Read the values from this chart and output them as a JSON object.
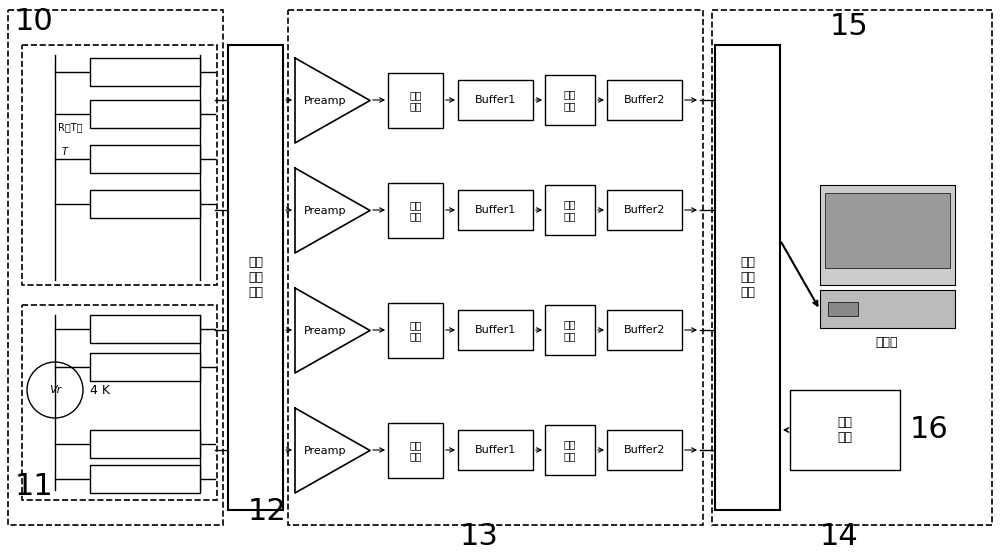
{
  "bg_color": "#ffffff",
  "line_color": "#000000",
  "label_10": "10",
  "label_11": "11",
  "label_12": "12",
  "label_13": "13",
  "label_14": "14",
  "label_15": "15",
  "label_16": "16",
  "switch_label": "开关\n转换\n电路",
  "data_acq_label": "数据\n采集\n电路",
  "timing_label": "时序\n电路",
  "computer_label": "计算机",
  "preamp_label": "Preamp",
  "filter1_label": "滤波\n器一",
  "filter2_label": "滤波\n器二",
  "buffer1_label": "Buffer1",
  "buffer2_label": "Buffer2",
  "R_label": "R（T）",
  "T_label": "T",
  "Vr_label": "Vr",
  "K4_label": "4 K",
  "figsize": [
    10.0,
    5.58
  ],
  "dpi": 100
}
